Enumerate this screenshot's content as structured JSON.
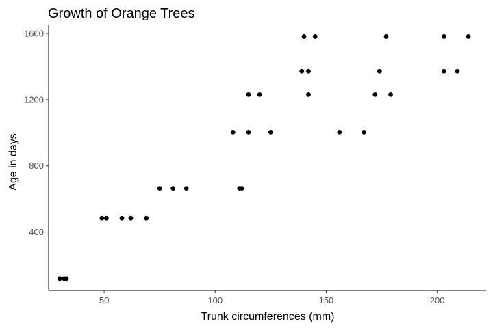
{
  "chart_data": {
    "type": "scatter",
    "title": "Growth of Orange Trees",
    "xlabel": "Trunk circumferences (mm)",
    "ylabel": "Age in days",
    "xlim": [
      25,
      222
    ],
    "ylim": [
      47,
      1654
    ],
    "x_ticks": [
      50,
      100,
      150,
      200
    ],
    "y_ticks": [
      400,
      800,
      1200,
      1600
    ],
    "grid": false,
    "points": [
      {
        "x": 30,
        "y": 118
      },
      {
        "x": 32,
        "y": 118
      },
      {
        "x": 33,
        "y": 118
      },
      {
        "x": 49,
        "y": 484
      },
      {
        "x": 51,
        "y": 484
      },
      {
        "x": 58,
        "y": 484
      },
      {
        "x": 62,
        "y": 484
      },
      {
        "x": 69,
        "y": 484
      },
      {
        "x": 75,
        "y": 664
      },
      {
        "x": 81,
        "y": 664
      },
      {
        "x": 87,
        "y": 664
      },
      {
        "x": 111,
        "y": 664
      },
      {
        "x": 112,
        "y": 664
      },
      {
        "x": 108,
        "y": 1004
      },
      {
        "x": 115,
        "y": 1004
      },
      {
        "x": 125,
        "y": 1004
      },
      {
        "x": 156,
        "y": 1004
      },
      {
        "x": 167,
        "y": 1004
      },
      {
        "x": 115,
        "y": 1231
      },
      {
        "x": 120,
        "y": 1231
      },
      {
        "x": 142,
        "y": 1231
      },
      {
        "x": 172,
        "y": 1231
      },
      {
        "x": 179,
        "y": 1231
      },
      {
        "x": 139,
        "y": 1372
      },
      {
        "x": 142,
        "y": 1372
      },
      {
        "x": 174,
        "y": 1372
      },
      {
        "x": 203,
        "y": 1372
      },
      {
        "x": 209,
        "y": 1372
      },
      {
        "x": 140,
        "y": 1582
      },
      {
        "x": 145,
        "y": 1582
      },
      {
        "x": 177,
        "y": 1582
      },
      {
        "x": 203,
        "y": 1582
      },
      {
        "x": 214,
        "y": 1582
      }
    ],
    "point_color": "#000000"
  }
}
